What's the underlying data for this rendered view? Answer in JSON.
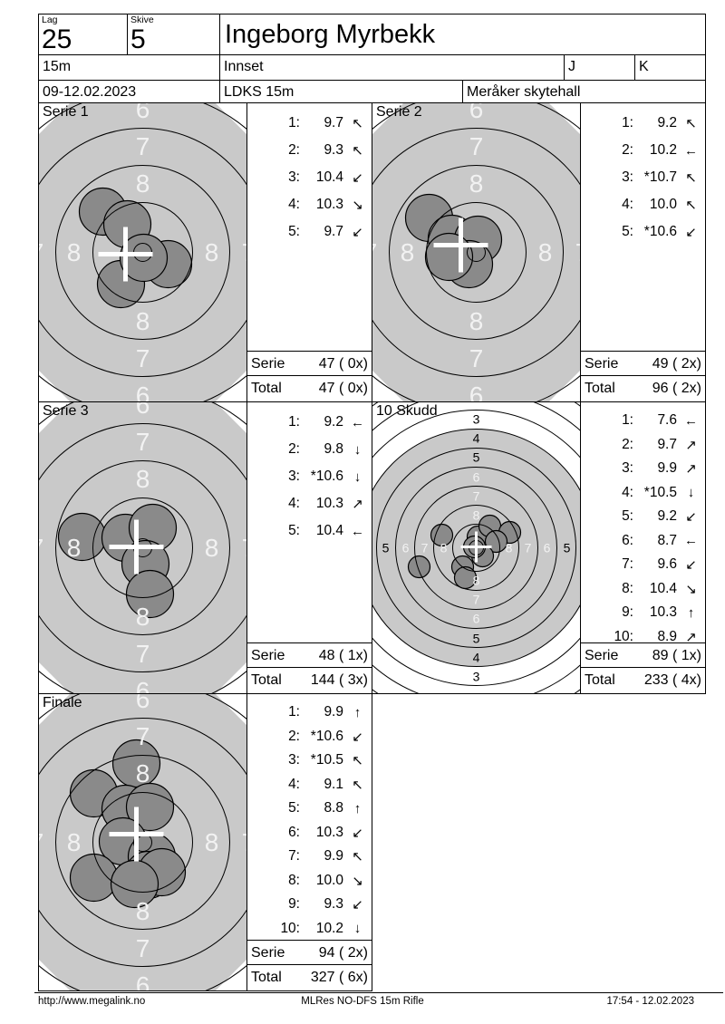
{
  "header": {
    "lag_label": "Lag",
    "lag_value": "25",
    "skive_label": "Skive",
    "skive_value": "5",
    "name": "Ingeborg Myrbekk",
    "distance": "15m",
    "club": "Innset",
    "class_j": "J",
    "class_k": "K",
    "date_range": "09-12.02.2023",
    "event": "LDKS 15m",
    "venue": "Meråker skytehall"
  },
  "labels": {
    "serie": "Serie",
    "total": "Total"
  },
  "colors": {
    "target_bg": "#c9c9c9",
    "shot_fill": "#8a8a8a",
    "shot_stroke": "#000000",
    "ring_stroke": "#000000",
    "ring_label_light": "#f2f2f2",
    "ring_label_dark": "#000000",
    "cross": "#ffffff"
  },
  "target_geometry": {
    "zoom": {
      "radii": [
        10,
        55,
        96,
        137,
        178,
        219
      ],
      "ring_labels": [
        [
          76,
          "8"
        ],
        [
          117,
          "7"
        ],
        [
          158,
          "6"
        ]
      ],
      "label_font": 28,
      "shot_radius": 26,
      "cross_arm": 30,
      "cross_width": 5,
      "corner_cut": 34
    },
    "full": {
      "radii": [
        8,
        26,
        47,
        68,
        89,
        110,
        131,
        152,
        173,
        194,
        215,
        236
      ],
      "gray_disc_radius": 131,
      "ring_labels_light": [
        [
          36,
          "8"
        ],
        [
          57,
          "7"
        ],
        [
          78,
          "6"
        ]
      ],
      "ring_labels_dark": [
        [
          100,
          "5"
        ],
        [
          121,
          "4"
        ],
        [
          142,
          "3"
        ]
      ],
      "label_font": 14,
      "shot_radius": 12,
      "cross_arm": 17,
      "cross_width": 3,
      "background": "#ffffff"
    }
  },
  "panels": [
    {
      "title": "Serie 1",
      "type": "zoom",
      "shots": [
        {
          "n": "1:",
          "v": "9.7",
          "a": "↖"
        },
        {
          "n": "2:",
          "v": "9.3",
          "a": "↖"
        },
        {
          "n": "3:",
          "v": "10.4",
          "a": "↙"
        },
        {
          "n": "4:",
          "v": "10.3",
          "a": "↘"
        },
        {
          "n": "5:",
          "v": "9.7",
          "a": "↙"
        }
      ],
      "serie_sum": "47 ( 0x)",
      "total_sum": "47 ( 0x)",
      "hit_positions": [
        [
          -44,
          -45
        ],
        [
          -17,
          -31
        ],
        [
          28,
          13
        ],
        [
          -24,
          35
        ],
        [
          1,
          6
        ]
      ],
      "cross": [
        -19,
        2
      ]
    },
    {
      "title": "Serie 2",
      "type": "zoom",
      "shots": [
        {
          "n": "1:",
          "v": "9.2",
          "a": "↖"
        },
        {
          "n": "2:",
          "v": "10.2",
          "a": "←"
        },
        {
          "n": "3:",
          "v": "*10.7",
          "a": "↖"
        },
        {
          "n": "4:",
          "v": "10.0",
          "a": "↖"
        },
        {
          "n": "5:",
          "v": "*10.6",
          "a": "↙"
        }
      ],
      "serie_sum": "49 ( 2x)",
      "total_sum": "96 ( 2x)",
      "hit_positions": [
        [
          -52,
          -38
        ],
        [
          -27,
          -15
        ],
        [
          2,
          -14
        ],
        [
          -8,
          13
        ],
        [
          -30,
          5
        ]
      ],
      "cross": [
        -17,
        -8
      ]
    },
    {
      "title": "Serie 3",
      "type": "zoom",
      "shots": [
        {
          "n": "1:",
          "v": "9.2",
          "a": "←"
        },
        {
          "n": "2:",
          "v": "9.8",
          "a": "↓"
        },
        {
          "n": "3:",
          "v": "*10.6",
          "a": "↓"
        },
        {
          "n": "4:",
          "v": "10.3",
          "a": "↗"
        },
        {
          "n": "5:",
          "v": "10.4",
          "a": "←"
        }
      ],
      "serie_sum": "48 ( 1x)",
      "total_sum": "144 ( 3x)",
      "hit_positions": [
        [
          -67,
          -12
        ],
        [
          -19,
          -11
        ],
        [
          11,
          -22
        ],
        [
          3,
          18
        ],
        [
          8,
          51
        ]
      ],
      "cross": [
        -7,
        -1
      ]
    },
    {
      "title": "10 Skudd",
      "type": "full",
      "shots": [
        {
          "n": "1:",
          "v": "7.6",
          "a": "←"
        },
        {
          "n": "2:",
          "v": "9.7",
          "a": "↗"
        },
        {
          "n": "3:",
          "v": "9.9",
          "a": "↗"
        },
        {
          "n": "4:",
          "v": "*10.5",
          "a": "↓"
        },
        {
          "n": "5:",
          "v": "9.2",
          "a": "↙"
        },
        {
          "n": "6:",
          "v": "8.7",
          "a": "←"
        },
        {
          "n": "7:",
          "v": "9.6",
          "a": "↙"
        },
        {
          "n": "8:",
          "v": "10.4",
          "a": "↘"
        },
        {
          "n": "9:",
          "v": "10.3",
          "a": "↑"
        },
        {
          "n": "10:",
          "v": "8.9",
          "a": "↗"
        }
      ],
      "serie_sum": "89 ( 1x)",
      "total_sum": "233 ( 4x)",
      "hit_positions": [
        [
          -38,
          -14
        ],
        [
          -63,
          21
        ],
        [
          2,
          -12
        ],
        [
          15,
          -24
        ],
        [
          37,
          -17
        ],
        [
          22,
          -7
        ],
        [
          -15,
          21
        ],
        [
          -12,
          33
        ],
        [
          7,
          9
        ],
        [
          -2,
          -1
        ]
      ],
      "cross": [
        0,
        -1
      ]
    },
    {
      "title": "Finale",
      "type": "zoom",
      "shots": [
        {
          "n": "1:",
          "v": "9.9",
          "a": "↑"
        },
        {
          "n": "2:",
          "v": "*10.6",
          "a": "↙"
        },
        {
          "n": "3:",
          "v": "*10.5",
          "a": "↖"
        },
        {
          "n": "4:",
          "v": "9.1",
          "a": "↖"
        },
        {
          "n": "5:",
          "v": "8.8",
          "a": "↑"
        },
        {
          "n": "6:",
          "v": "10.3",
          "a": "↙"
        },
        {
          "n": "7:",
          "v": "9.9",
          "a": "↖"
        },
        {
          "n": "8:",
          "v": "10.0",
          "a": "↘"
        },
        {
          "n": "9:",
          "v": "9.3",
          "a": "↙"
        },
        {
          "n": "10:",
          "v": "10.2",
          "a": "↓"
        }
      ],
      "serie_sum": "94 ( 2x)",
      "total_sum": "327 ( 6x)",
      "hit_positions": [
        [
          -7,
          -87
        ],
        [
          -54,
          -54
        ],
        [
          -19,
          -37
        ],
        [
          8,
          -39
        ],
        [
          -22,
          -1
        ],
        [
          10,
          16
        ],
        [
          -54,
          39
        ],
        [
          6,
          36
        ],
        [
          21,
          33
        ],
        [
          -9,
          46
        ]
      ],
      "cross": [
        -7,
        -9
      ]
    }
  ],
  "footer": {
    "left": "http://www.megalink.no",
    "center": "MLRes NO-DFS 15m Rifle",
    "right": "17:54 - 12.02.2023"
  }
}
